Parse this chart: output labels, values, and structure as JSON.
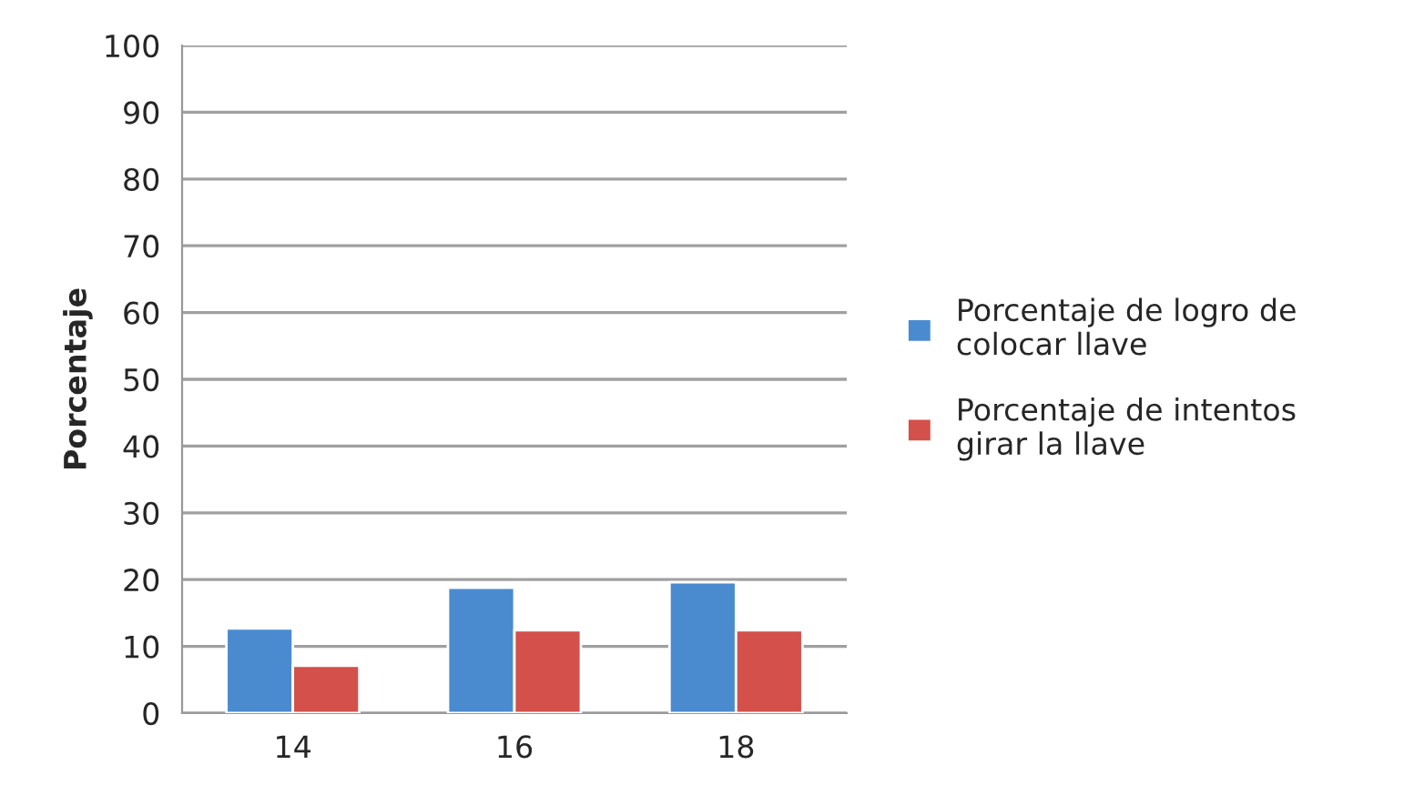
{
  "chart_data": {
    "type": "bar",
    "ylabel": "Porcentaje",
    "categories": [
      "14",
      "16",
      "18"
    ],
    "series": [
      {
        "name": "Porcentaje de logro de colocar llave",
        "color": "#4a8bd0",
        "values": [
          12.7,
          18.8,
          19.6
        ]
      },
      {
        "name": "Porcentaje de intentos girar la llave",
        "color": "#d4504a",
        "values": [
          7.1,
          12.4,
          12.4
        ]
      }
    ],
    "ylim": [
      0,
      100
    ],
    "yticks": [
      0,
      10,
      20,
      30,
      40,
      50,
      60,
      70,
      80,
      90,
      100
    ],
    "grid": "y",
    "legend": "right"
  }
}
